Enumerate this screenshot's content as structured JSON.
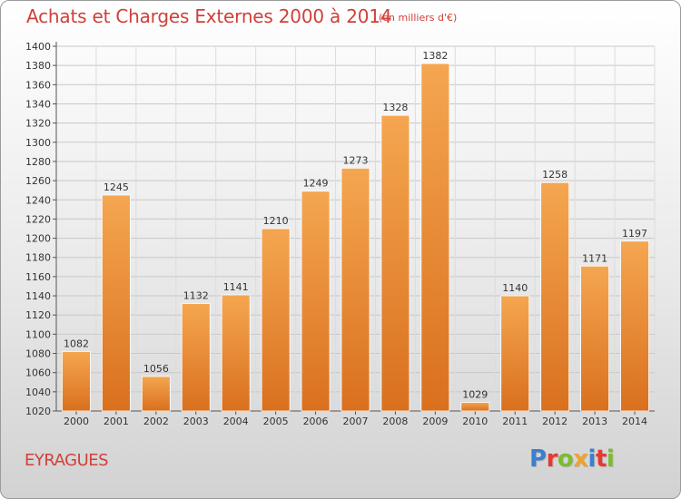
{
  "header": {
    "title": "Achats et Charges Externes 2000 à 2014",
    "unit": "(en milliers d'€)"
  },
  "footer": {
    "location": "EYRAGUES",
    "logo": [
      "P",
      "r",
      "o",
      "x",
      "i",
      "t",
      "i"
    ],
    "logo_colors": [
      "#3b7fd0",
      "#e8382f",
      "#7bbd2f",
      "#f0a22e",
      "#3b7fd0",
      "#e8382f",
      "#7bbd2f"
    ]
  },
  "colors": {
    "bar_light": "#f5a650",
    "bar_dark": "#d9701e",
    "text": "#d0403a"
  },
  "chart_data": {
    "type": "bar",
    "title": "Achats et Charges Externes 2000 à 2014",
    "subtitle": "(en milliers d'€)",
    "xlabel": "",
    "ylabel": "",
    "categories": [
      "2000",
      "2001",
      "2002",
      "2003",
      "2004",
      "2005",
      "2006",
      "2007",
      "2008",
      "2009",
      "2010",
      "2011",
      "2012",
      "2013",
      "2014"
    ],
    "values": [
      1082,
      1245,
      1056,
      1132,
      1141,
      1210,
      1249,
      1273,
      1328,
      1382,
      1029,
      1140,
      1258,
      1171,
      1197
    ],
    "ylim": [
      1020,
      1400
    ],
    "yticks": [
      1020,
      1040,
      1060,
      1080,
      1100,
      1120,
      1140,
      1160,
      1180,
      1200,
      1220,
      1240,
      1260,
      1280,
      1300,
      1320,
      1340,
      1360,
      1380,
      1400
    ],
    "grid": true,
    "legend": "none"
  }
}
